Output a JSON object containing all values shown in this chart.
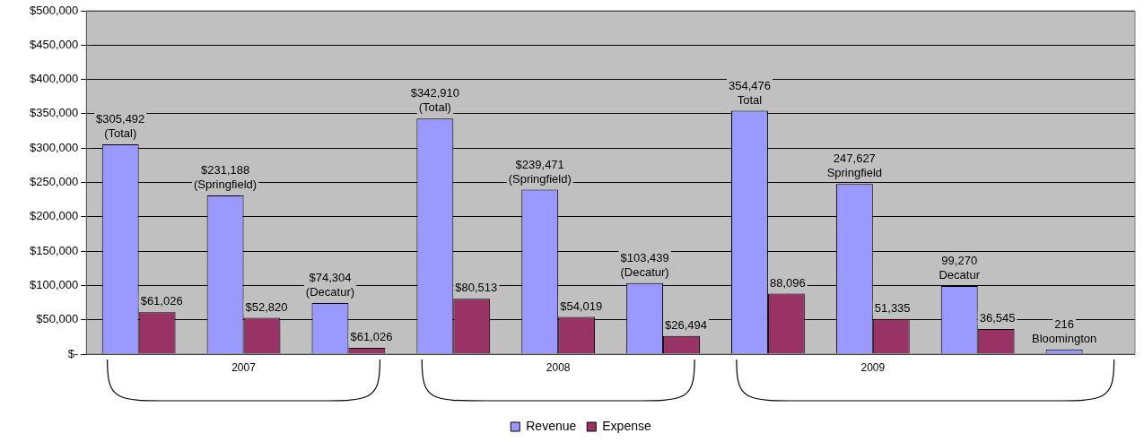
{
  "chart_data": {
    "type": "bar",
    "categories": [
      null,
      "2007",
      null,
      null,
      "2008",
      null,
      null,
      "2009",
      null,
      null
    ],
    "series": [
      {
        "name": "Revenue",
        "color": "#9999ff",
        "values": [
          305492,
          231188,
          74304,
          342910,
          239471,
          103439,
          354476,
          247627,
          99270,
          7000
        ],
        "value_labels": [
          "$305,492\n(Total)",
          "$231,188\n(Springfield)",
          "$74,304\n(Decatur)",
          "$342,910\n(Total)",
          "$239,471\n(Springfield)",
          "$103,439\n(Decatur)",
          "354,476\nTotal",
          "247,627\nSpringfield",
          "99,270\nDecatur",
          null
        ]
      },
      {
        "name": "Expense",
        "color": "#993366",
        "values": [
          61026,
          52820,
          9000,
          80513,
          54019,
          26494,
          88096,
          51335,
          36545,
          null
        ],
        "value_labels": [
          "$61,026",
          "$52,820",
          null,
          "$80,513",
          "$54,019",
          "$26,494",
          "88,096",
          "51,335",
          "36,545",
          null
        ]
      }
    ],
    "ylim": [
      0,
      500000
    ],
    "yticks": [
      {
        "value": 0,
        "label": "$-"
      },
      {
        "value": 50000,
        "label": "$50,000"
      },
      {
        "value": 100000,
        "label": "$100,000"
      },
      {
        "value": 150000,
        "label": "$150,000"
      },
      {
        "value": 200000,
        "label": "$200,000"
      },
      {
        "value": 250000,
        "label": "$250,000"
      },
      {
        "value": 300000,
        "label": "$300,000"
      },
      {
        "value": 350000,
        "label": "$350,000"
      },
      {
        "value": 400000,
        "label": "$400,000"
      },
      {
        "value": 450000,
        "label": "$450,000"
      },
      {
        "value": 500000,
        "label": "$500,000"
      }
    ],
    "annotations": [
      "216\nBloomington",
      "$61,026"
    ],
    "grid": "y",
    "legend": "bottom"
  }
}
